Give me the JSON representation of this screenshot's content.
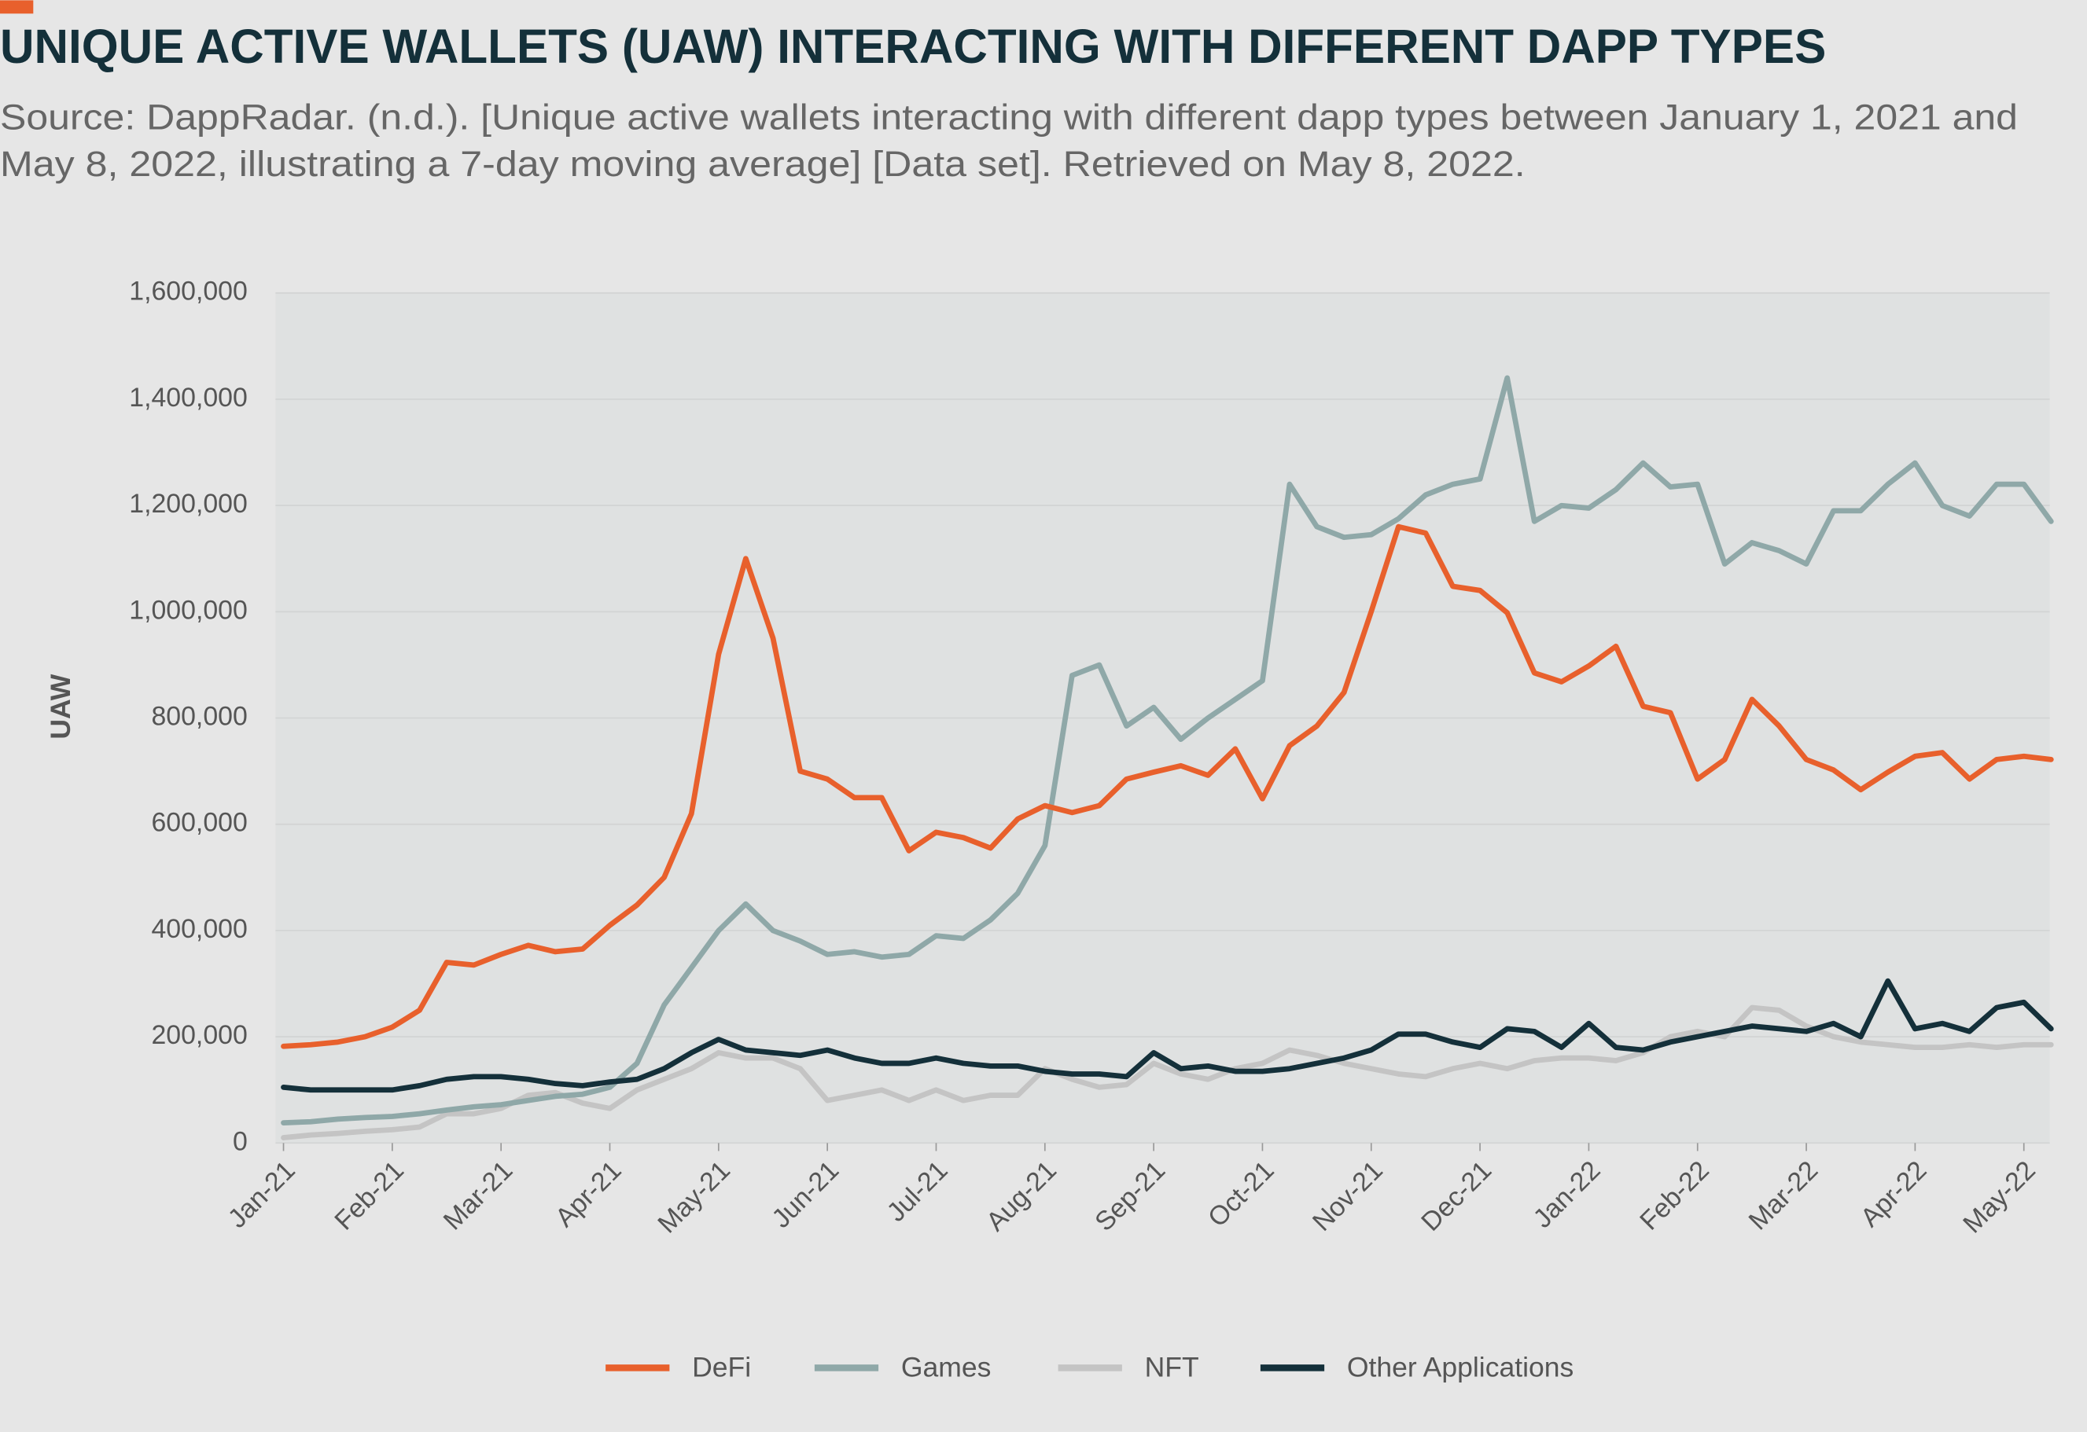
{
  "chart_data": {
    "type": "line",
    "title": "UNIQUE ACTIVE WALLETS (UAW) INTERACTING WITH DIFFERENT DAPP TYPES",
    "subtitle": [
      "Source: DappRadar. (n.d.). [Unique active wallets interacting with different dapp types between January 1, 2021 and",
      "May 8, 2022, illustrating a 7-day moving average] [Data set]. Retrieved on May 8, 2022."
    ],
    "y_label": "UAW",
    "categories": [
      "Jan-21",
      null,
      null,
      null,
      "Feb-21",
      null,
      null,
      null,
      "Mar-21",
      null,
      null,
      null,
      "Apr-21",
      null,
      null,
      null,
      "May-21",
      null,
      null,
      null,
      "Jun-21",
      null,
      null,
      null,
      "Jul-21",
      null,
      null,
      null,
      "Aug-21",
      null,
      null,
      null,
      "Sep-21",
      null,
      null,
      null,
      "Oct-21",
      null,
      null,
      null,
      "Nov-21",
      null,
      null,
      null,
      "Dec-21",
      null,
      null,
      null,
      "Jan-22",
      null,
      null,
      null,
      "Feb-22",
      null,
      null,
      null,
      "Mar-22",
      null,
      null,
      null,
      "Apr-22",
      null,
      null,
      null,
      "May-22",
      null
    ],
    "ylim": [
      0,
      1600000
    ],
    "yticks": [
      0,
      {
        "value": 200000,
        "label": "200,000"
      },
      {
        "value": 400000,
        "label": "400,000"
      },
      {
        "value": 600000,
        "label": "600,000"
      },
      {
        "value": 800000,
        "label": "800,000"
      },
      {
        "value": 1000000,
        "label": "1,000,000"
      },
      {
        "value": 1200000,
        "label": "1,200,000"
      },
      {
        "value": 1400000,
        "label": "1,400,000"
      },
      {
        "value": 1600000,
        "label": "1,600,000"
      }
    ],
    "grid": true,
    "legend": "bottom",
    "series": [
      {
        "name": "DeFi",
        "color": "#e8602c",
        "values": [
          182000,
          185000,
          190000,
          200000,
          218000,
          250000,
          340000,
          335000,
          355000,
          372000,
          360000,
          365000,
          410000,
          448000,
          500000,
          620000,
          920000,
          1100000,
          950000,
          700000,
          685000,
          650000,
          650000,
          550000,
          585000,
          575000,
          555000,
          610000,
          635000,
          622000,
          635000,
          685000,
          698000,
          710000,
          692000,
          742000,
          648000,
          748000,
          785000,
          848000,
          1000000,
          1160000,
          1148000,
          1048000,
          1040000,
          998000,
          885000,
          868000,
          898000,
          935000,
          822000,
          810000,
          685000,
          722000,
          835000,
          785000,
          722000,
          702000,
          665000,
          698000,
          728000,
          735000,
          685000,
          722000,
          728000,
          722000
        ]
      },
      {
        "name": "Games",
        "color": "#8fa8a8",
        "values": [
          38000,
          40000,
          45000,
          48000,
          50000,
          55000,
          62000,
          68000,
          72000,
          80000,
          88000,
          92000,
          105000,
          150000,
          260000,
          330000,
          400000,
          450000,
          400000,
          380000,
          355000,
          360000,
          350000,
          355000,
          390000,
          385000,
          420000,
          470000,
          560000,
          880000,
          900000,
          785000,
          820000,
          760000,
          800000,
          835000,
          870000,
          1240000,
          1160000,
          1140000,
          1145000,
          1175000,
          1220000,
          1240000,
          1250000,
          1440000,
          1170000,
          1200000,
          1195000,
          1230000,
          1280000,
          1235000,
          1240000,
          1090000,
          1130000,
          1115000,
          1090000,
          1190000,
          1190000,
          1240000,
          1280000,
          1200000,
          1180000,
          1240000,
          1240000,
          1170000
        ]
      },
      {
        "name": "NFT",
        "color": "#c4c4c4",
        "values": [
          10000,
          15000,
          18000,
          22000,
          25000,
          30000,
          55000,
          55000,
          65000,
          90000,
          95000,
          75000,
          65000,
          100000,
          120000,
          140000,
          170000,
          160000,
          160000,
          140000,
          80000,
          90000,
          100000,
          80000,
          100000,
          80000,
          90000,
          90000,
          140000,
          120000,
          105000,
          110000,
          150000,
          130000,
          120000,
          140000,
          150000,
          175000,
          165000,
          150000,
          140000,
          130000,
          125000,
          140000,
          150000,
          140000,
          155000,
          160000,
          160000,
          155000,
          170000,
          200000,
          210000,
          200000,
          255000,
          250000,
          220000,
          200000,
          190000,
          185000,
          180000,
          180000,
          185000,
          180000,
          185000,
          185000
        ]
      },
      {
        "name": "Other Applications",
        "color": "#14303a",
        "values": [
          105000,
          100000,
          100000,
          100000,
          100000,
          108000,
          120000,
          125000,
          125000,
          120000,
          112000,
          108000,
          115000,
          120000,
          140000,
          170000,
          195000,
          175000,
          170000,
          165000,
          175000,
          160000,
          150000,
          150000,
          160000,
          150000,
          145000,
          145000,
          135000,
          130000,
          130000,
          125000,
          170000,
          140000,
          145000,
          135000,
          135000,
          140000,
          150000,
          160000,
          175000,
          205000,
          205000,
          190000,
          180000,
          215000,
          210000,
          180000,
          225000,
          180000,
          175000,
          190000,
          200000,
          210000,
          220000,
          215000,
          210000,
          225000,
          200000,
          305000,
          215000,
          225000,
          210000,
          255000,
          265000,
          215000
        ]
      }
    ]
  }
}
